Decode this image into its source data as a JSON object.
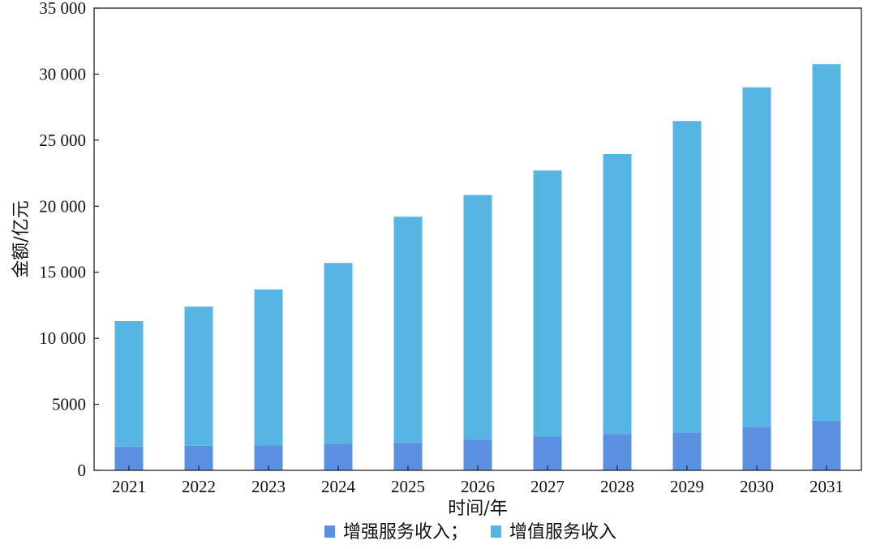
{
  "chart_data": {
    "type": "bar",
    "stacked": true,
    "categories": [
      "2021",
      "2022",
      "2023",
      "2024",
      "2025",
      "2026",
      "2027",
      "2028",
      "2029",
      "2030",
      "2031"
    ],
    "series": [
      {
        "name": "增强服务收入；",
        "color": "#5b8fdf",
        "values": [
          1800,
          1850,
          1900,
          2000,
          2100,
          2300,
          2550,
          2750,
          2850,
          3300,
          3750
        ]
      },
      {
        "name": "增值服务收入",
        "color": "#57b5e3",
        "values": [
          9500,
          10550,
          11800,
          13700,
          17100,
          18550,
          20150,
          21200,
          23600,
          25700,
          27000
        ]
      }
    ],
    "xlabel": "时间/年",
    "ylabel": "金额/亿元",
    "ylim": [
      0,
      35000
    ],
    "yticks": [
      0,
      5000,
      10000,
      15000,
      20000,
      25000,
      30000,
      35000
    ],
    "ytick_labels": [
      "0",
      "5000",
      "10 000",
      "15 000",
      "20 000",
      "25 000",
      "30 000",
      "35 000"
    ],
    "legend_position": "bottom-center",
    "grid": false
  }
}
